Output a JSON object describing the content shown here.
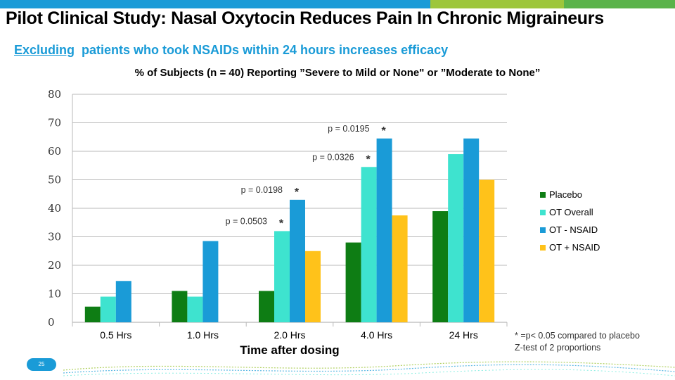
{
  "slide": {
    "title": "Pilot Clinical Study: Nasal Oxytocin Reduces Pain In Chronic Migraineurs",
    "subtitle_underlined": "Excluding",
    "subtitle_rest": "patients who took NSAIDs within 24 hours increases efficacy",
    "page_number": "25",
    "footnote_line1": "* =p< 0.05 compared to placebo",
    "footnote_line2": "Z-test of 2 proportions",
    "topbar_colors": [
      "#1a9bd7",
      "#9dc63b",
      "#5ab34a"
    ]
  },
  "chart_data": {
    "type": "bar",
    "title": "% of Subjects (n = 40) Reporting ”Severe to Mild or None\" or ”Moderate to None”",
    "xlabel": "Time after dosing",
    "ylabel": "",
    "ylim": [
      0,
      80
    ],
    "yticks": [
      0,
      10,
      20,
      30,
      40,
      50,
      60,
      70,
      80
    ],
    "categories": [
      "0.5 Hrs",
      "1.0 Hrs",
      "2.0 Hrs",
      "4.0 Hrs",
      "24 Hrs"
    ],
    "series": [
      {
        "name": "Placebo",
        "color": "#0e7d14",
        "values": [
          5.5,
          11,
          11,
          28,
          39
        ]
      },
      {
        "name": "OT Overall",
        "color": "#3ee3cf",
        "values": [
          9,
          9,
          32,
          54.5,
          59
        ]
      },
      {
        "name": "OT - NSAID",
        "color": "#1a9bd7",
        "values": [
          14.5,
          28.5,
          43,
          64.5,
          64.5
        ]
      },
      {
        "name": "OT + NSAID",
        "color": "#ffc21a",
        "values": [
          null,
          null,
          25,
          37.5,
          50
        ]
      }
    ],
    "annotations": [
      {
        "text": "p = 0.0503",
        "star": "*",
        "category": 2,
        "series": 1
      },
      {
        "text": "p = 0.0198",
        "star": "*",
        "category": 2,
        "series": 2
      },
      {
        "text": "p = 0.0326",
        "star": "*",
        "category": 3,
        "series": 1
      },
      {
        "text": "p = 0.0195",
        "star": "*",
        "category": 3,
        "series": 2
      }
    ],
    "legend_position": "right",
    "grid": true
  }
}
